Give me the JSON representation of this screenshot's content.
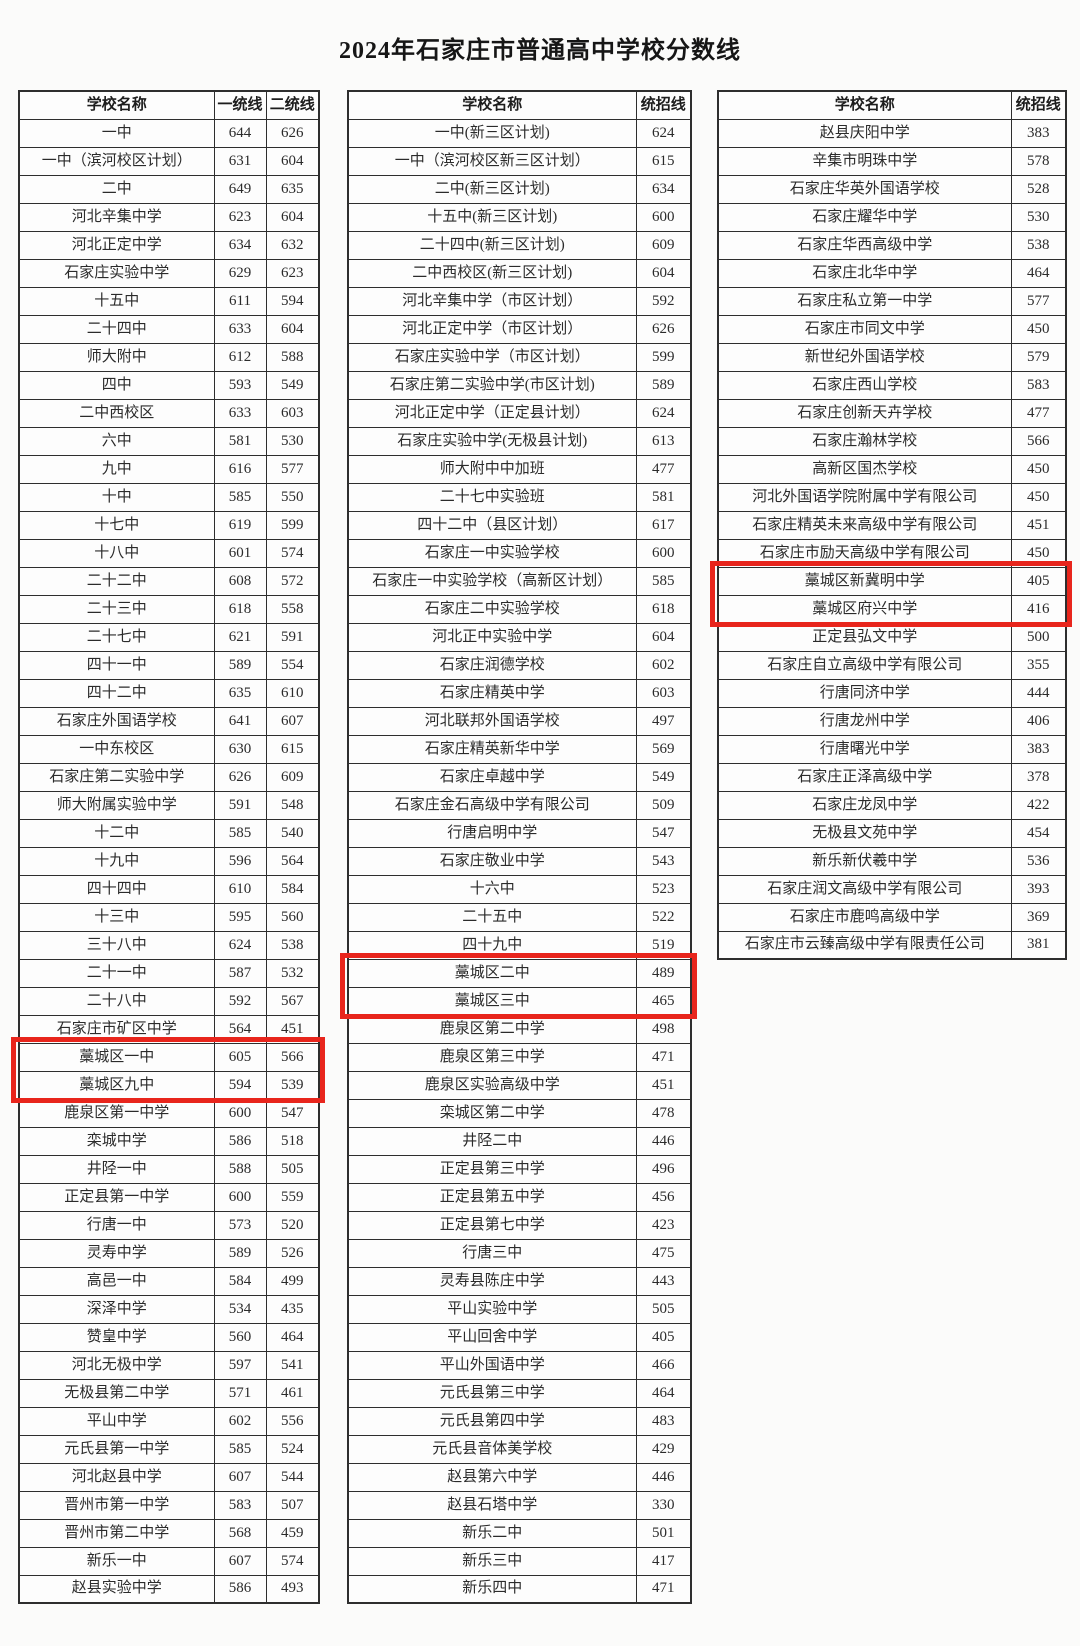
{
  "title": "2024年石家庄市普通高中学校分数线",
  "colors": {
    "accent_red": "#e8251c",
    "table_border": "#2e2e2e"
  },
  "tables": [
    {
      "name": "city-first-batch",
      "headers": [
        "学校名称",
        "一统线",
        "二统线"
      ],
      "highlight_start": 34,
      "highlight_end": 35,
      "rows": [
        [
          "一中",
          "644",
          "626"
        ],
        [
          "一中（滨河校区计划）",
          "631",
          "604"
        ],
        [
          "二中",
          "649",
          "635"
        ],
        [
          "河北辛集中学",
          "623",
          "604"
        ],
        [
          "河北正定中学",
          "634",
          "632"
        ],
        [
          "石家庄实验中学",
          "629",
          "623"
        ],
        [
          "十五中",
          "611",
          "594"
        ],
        [
          "二十四中",
          "633",
          "604"
        ],
        [
          "师大附中",
          "612",
          "588"
        ],
        [
          "四中",
          "593",
          "549"
        ],
        [
          "二中西校区",
          "633",
          "603"
        ],
        [
          "六中",
          "581",
          "530"
        ],
        [
          "九中",
          "616",
          "577"
        ],
        [
          "十中",
          "585",
          "550"
        ],
        [
          "十七中",
          "619",
          "599"
        ],
        [
          "十八中",
          "601",
          "574"
        ],
        [
          "二十二中",
          "608",
          "572"
        ],
        [
          "二十三中",
          "618",
          "558"
        ],
        [
          "二十七中",
          "621",
          "591"
        ],
        [
          "四十一中",
          "589",
          "554"
        ],
        [
          "四十二中",
          "635",
          "610"
        ],
        [
          "石家庄外国语学校",
          "641",
          "607"
        ],
        [
          "一中东校区",
          "630",
          "615"
        ],
        [
          "石家庄第二实验中学",
          "626",
          "609"
        ],
        [
          "师大附属实验中学",
          "591",
          "548"
        ],
        [
          "十二中",
          "585",
          "540"
        ],
        [
          "十九中",
          "596",
          "564"
        ],
        [
          "四十四中",
          "610",
          "584"
        ],
        [
          "十三中",
          "595",
          "560"
        ],
        [
          "三十八中",
          "624",
          "538"
        ],
        [
          "二十一中",
          "587",
          "532"
        ],
        [
          "二十八中",
          "592",
          "567"
        ],
        [
          "石家庄市矿区中学",
          "564",
          "451"
        ],
        [
          "藁城区一中",
          "605",
          "566"
        ],
        [
          "藁城区九中",
          "594",
          "539"
        ],
        [
          "鹿泉区第一中学",
          "600",
          "547"
        ],
        [
          "栾城中学",
          "586",
          "518"
        ],
        [
          "井陉一中",
          "588",
          "505"
        ],
        [
          "正定县第一中学",
          "600",
          "559"
        ],
        [
          "行唐一中",
          "573",
          "520"
        ],
        [
          "灵寿中学",
          "589",
          "526"
        ],
        [
          "高邑一中",
          "584",
          "499"
        ],
        [
          "深泽中学",
          "534",
          "435"
        ],
        [
          "赞皇中学",
          "560",
          "464"
        ],
        [
          "河北无极中学",
          "597",
          "541"
        ],
        [
          "无极县第二中学",
          "571",
          "461"
        ],
        [
          "平山中学",
          "602",
          "556"
        ],
        [
          "元氏县第一中学",
          "585",
          "524"
        ],
        [
          "河北赵县中学",
          "607",
          "544"
        ],
        [
          "晋州市第一中学",
          "583",
          "507"
        ],
        [
          "晋州市第二中学",
          "568",
          "459"
        ],
        [
          "新乐一中",
          "607",
          "574"
        ],
        [
          "赵县实验中学",
          "586",
          "493"
        ]
      ]
    },
    {
      "name": "plan-batch",
      "headers": [
        "学校名称",
        "统招线"
      ],
      "highlight_start": 31,
      "highlight_end": 32,
      "rows": [
        [
          "一中(新三区计划)",
          "624"
        ],
        [
          "一中（滨河校区新三区计划）",
          "615"
        ],
        [
          "二中(新三区计划)",
          "634"
        ],
        [
          "十五中(新三区计划)",
          "600"
        ],
        [
          "二十四中(新三区计划)",
          "609"
        ],
        [
          "二中西校区(新三区计划)",
          "604"
        ],
        [
          "河北辛集中学（市区计划）",
          "592"
        ],
        [
          "河北正定中学（市区计划）",
          "626"
        ],
        [
          "石家庄实验中学（市区计划）",
          "599"
        ],
        [
          "石家庄第二实验中学(市区计划)",
          "589"
        ],
        [
          "河北正定中学（正定县计划）",
          "624"
        ],
        [
          "石家庄实验中学(无极县计划)",
          "613"
        ],
        [
          "师大附中中加班",
          "477"
        ],
        [
          "二十七中实验班",
          "581"
        ],
        [
          "四十二中（县区计划）",
          "617"
        ],
        [
          "石家庄一中实验学校",
          "600"
        ],
        [
          "石家庄一中实验学校（高新区计划）",
          "585"
        ],
        [
          "石家庄二中实验学校",
          "618"
        ],
        [
          "河北正中实验中学",
          "604"
        ],
        [
          "石家庄润德学校",
          "602"
        ],
        [
          "石家庄精英中学",
          "603"
        ],
        [
          "河北联邦外国语学校",
          "497"
        ],
        [
          "石家庄精英新华中学",
          "569"
        ],
        [
          "石家庄卓越中学",
          "549"
        ],
        [
          "石家庄金石高级中学有限公司",
          "509"
        ],
        [
          "行唐启明中学",
          "547"
        ],
        [
          "石家庄敬业中学",
          "543"
        ],
        [
          "十六中",
          "523"
        ],
        [
          "二十五中",
          "522"
        ],
        [
          "四十九中",
          "519"
        ],
        [
          "藁城区二中",
          "489"
        ],
        [
          "藁城区三中",
          "465"
        ],
        [
          "鹿泉区第二中学",
          "498"
        ],
        [
          "鹿泉区第三中学",
          "471"
        ],
        [
          "鹿泉区实验高级中学",
          "451"
        ],
        [
          "栾城区第二中学",
          "478"
        ],
        [
          "井陉二中",
          "446"
        ],
        [
          "正定县第三中学",
          "496"
        ],
        [
          "正定县第五中学",
          "456"
        ],
        [
          "正定县第七中学",
          "423"
        ],
        [
          "行唐三中",
          "475"
        ],
        [
          "灵寿县陈庄中学",
          "443"
        ],
        [
          "平山实验中学",
          "505"
        ],
        [
          "平山回舍中学",
          "405"
        ],
        [
          "平山外国语中学",
          "466"
        ],
        [
          "元氏县第三中学",
          "464"
        ],
        [
          "元氏县第四中学",
          "483"
        ],
        [
          "元氏县音体美学校",
          "429"
        ],
        [
          "赵县第六中学",
          "446"
        ],
        [
          "赵县石塔中学",
          "330"
        ],
        [
          "新乐二中",
          "501"
        ],
        [
          "新乐三中",
          "417"
        ],
        [
          "新乐四中",
          "471"
        ]
      ]
    },
    {
      "name": "private-batch",
      "headers": [
        "学校名称",
        "统招线"
      ],
      "highlight_start": 17,
      "highlight_end": 18,
      "rows": [
        [
          "赵县庆阳中学",
          "383"
        ],
        [
          "辛集市明珠中学",
          "578"
        ],
        [
          "石家庄华英外国语学校",
          "528"
        ],
        [
          "石家庄耀华中学",
          "530"
        ],
        [
          "石家庄华西高级中学",
          "538"
        ],
        [
          "石家庄北华中学",
          "464"
        ],
        [
          "石家庄私立第一中学",
          "577"
        ],
        [
          "石家庄市同文中学",
          "450"
        ],
        [
          "新世纪外国语学校",
          "579"
        ],
        [
          "石家庄西山学校",
          "583"
        ],
        [
          "石家庄创新天卉学校",
          "477"
        ],
        [
          "石家庄瀚林学校",
          "566"
        ],
        [
          "高新区国杰学校",
          "450"
        ],
        [
          "河北外国语学院附属中学有限公司",
          "450"
        ],
        [
          "石家庄精英未来高级中学有限公司",
          "451"
        ],
        [
          "石家庄市励天高级中学有限公司",
          "450"
        ],
        [
          "藁城区新冀明中学",
          "405"
        ],
        [
          "藁城区府兴中学",
          "416"
        ],
        [
          "正定县弘文中学",
          "500"
        ],
        [
          "石家庄自立高级中学有限公司",
          "355"
        ],
        [
          "行唐同济中学",
          "444"
        ],
        [
          "行唐龙州中学",
          "406"
        ],
        [
          "行唐曙光中学",
          "383"
        ],
        [
          "石家庄正泽高级中学",
          "378"
        ],
        [
          "石家庄龙凤中学",
          "422"
        ],
        [
          "无极县文苑中学",
          "454"
        ],
        [
          "新乐新伏羲中学",
          "536"
        ],
        [
          "石家庄润文高级中学有限公司",
          "393"
        ],
        [
          "石家庄市鹿鸣高级中学",
          "369"
        ],
        [
          "石家庄市云臻高级中学有限责任公司",
          "381"
        ]
      ]
    }
  ]
}
